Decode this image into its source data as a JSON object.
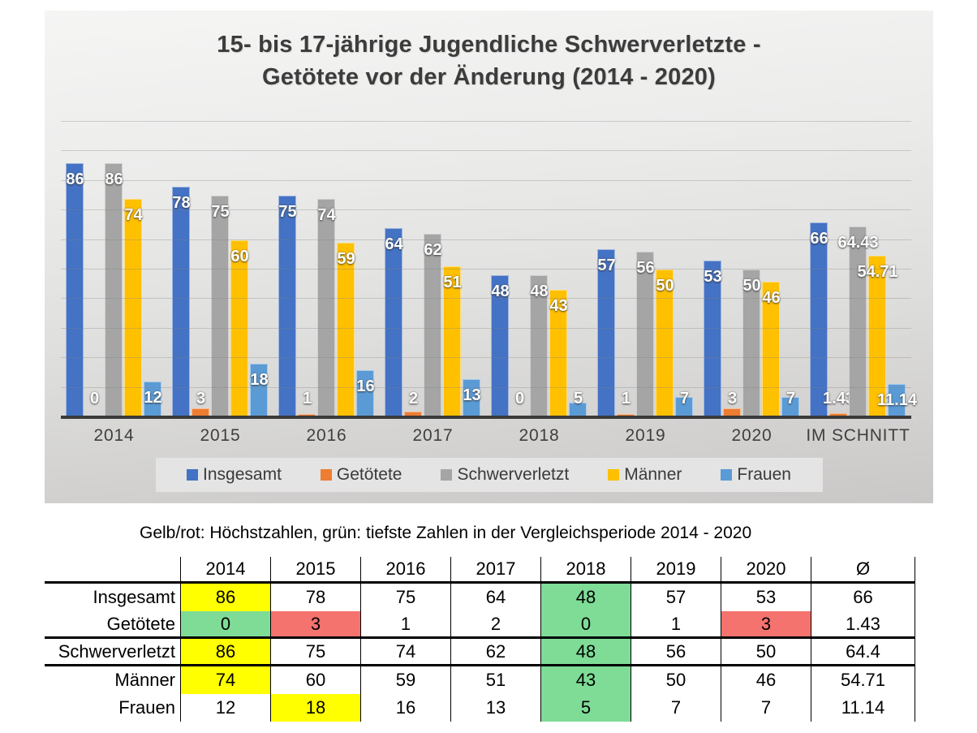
{
  "chart_data": {
    "type": "bar",
    "title": "15- bis 17-jährige Jugendliche Schwerverletzte - Getötete vor der Änderung (2014 - 2020)",
    "title_lines": [
      "15- bis 17-jährige Jugendliche Schwerverletzte -",
      "Getötete vor der Änderung (2014 - 2020)"
    ],
    "categories": [
      "2014",
      "2015",
      "2016",
      "2017",
      "2018",
      "2019",
      "2020",
      "IM SCHNITT"
    ],
    "series": [
      {
        "name": "Insgesamt",
        "color": "#4472C4",
        "values": [
          86,
          78,
          75,
          64,
          48,
          57,
          53,
          66
        ]
      },
      {
        "name": "Getötete",
        "color": "#ED7D31",
        "values": [
          0,
          3,
          1,
          2,
          0,
          1,
          3,
          1.43
        ]
      },
      {
        "name": "Schwerverletzt",
        "color": "#A5A5A5",
        "values": [
          86,
          75,
          74,
          62,
          48,
          56,
          50,
          64.43
        ]
      },
      {
        "name": "Männer",
        "color": "#FFC000",
        "values": [
          74,
          60,
          59,
          51,
          43,
          50,
          46,
          54.71
        ]
      },
      {
        "name": "Frauen",
        "color": "#5B9BD5",
        "values": [
          12,
          18,
          16,
          13,
          5,
          7,
          7,
          11.14
        ]
      }
    ],
    "ylim": [
      0,
      100
    ],
    "gridline_step": 10,
    "grid": true,
    "legend_position": "bottom",
    "data_labels": true
  },
  "table": {
    "caption": "Gelb/rot: Höchstzahlen, grün: tiefste Zahlen in der Vergleichsperiode 2014 - 2020",
    "header": [
      "",
      "2014",
      "2015",
      "2016",
      "2017",
      "2018",
      "2019",
      "2020",
      "Ø"
    ],
    "rows": [
      {
        "label": "Insgesamt",
        "values": [
          "86",
          "78",
          "75",
          "64",
          "48",
          "57",
          "53",
          "66"
        ],
        "fills": [
          "yellow",
          null,
          null,
          null,
          "green",
          null,
          null,
          null
        ],
        "thick_bottom": false
      },
      {
        "label": "Getötete",
        "values": [
          "0",
          "3",
          "1",
          "2",
          "0",
          "1",
          "3",
          "1.43"
        ],
        "fills": [
          "green",
          "red",
          null,
          null,
          "green",
          null,
          "red",
          null
        ],
        "thick_bottom": true
      },
      {
        "label": "Schwerverletzt",
        "values": [
          "86",
          "75",
          "74",
          "62",
          "48",
          "56",
          "50",
          "64.4"
        ],
        "fills": [
          "yellow",
          null,
          null,
          null,
          "green",
          null,
          null,
          null
        ],
        "thick_bottom": true
      },
      {
        "label": "Männer",
        "values": [
          "74",
          "60",
          "59",
          "51",
          "43",
          "50",
          "46",
          "54.71"
        ],
        "fills": [
          "yellow",
          null,
          null,
          null,
          "green",
          null,
          null,
          null
        ],
        "thick_bottom": false
      },
      {
        "label": "Frauen",
        "values": [
          "12",
          "18",
          "16",
          "13",
          "5",
          "7",
          "7",
          "11.14"
        ],
        "fills": [
          null,
          "yellow",
          null,
          null,
          "green",
          null,
          null,
          null
        ],
        "thick_bottom": false
      }
    ],
    "fill_colors": {
      "yellow": "#FFFF00",
      "green": "#7EDC96",
      "red": "#F4736E"
    }
  }
}
